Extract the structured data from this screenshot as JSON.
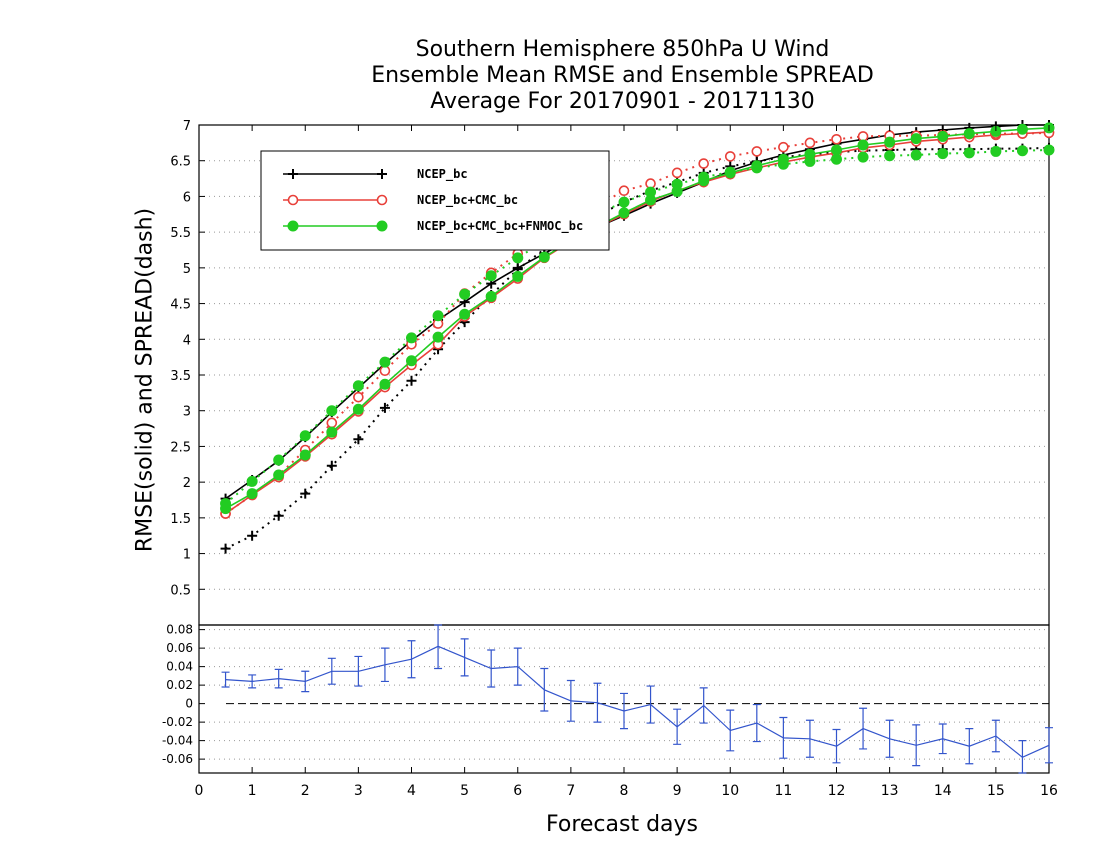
{
  "title_lines": [
    "Southern Hemisphere 850hPa U Wind",
    "Ensemble Mean RMSE and Ensemble SPREAD",
    "Average For 20170901 - 20171130"
  ],
  "chart_data": [
    {
      "type": "line",
      "title": "Southern Hemisphere 850hPa U Wind / Ensemble Mean RMSE and Ensemble SPREAD / Average For 20170901 - 20171130",
      "xlabel": "Forecast days",
      "ylabel": "RMSE(solid) and SPREAD(dash)",
      "xlim": [
        0,
        16
      ],
      "ylim": [
        0,
        7
      ],
      "yticks": [
        "0.5",
        "1",
        "1.5",
        "2",
        "2.5",
        "3",
        "3.5",
        "4",
        "4.5",
        "5",
        "5.5",
        "6",
        "6.5",
        "7"
      ],
      "x": [
        0.5,
        1,
        1.5,
        2,
        2.5,
        3,
        3.5,
        4,
        4.5,
        5,
        5.5,
        6,
        6.5,
        7,
        7.5,
        8,
        8.5,
        9,
        9.5,
        10,
        10.5,
        11,
        11.5,
        12,
        12.5,
        13,
        13.5,
        14,
        14.5,
        15,
        15.5,
        16
      ],
      "grid": "dotted horizontal",
      "legend": "top-left",
      "series": [
        {
          "name": "NCEP_bc",
          "kind": "rmse",
          "color": "#000000",
          "marker": "plus",
          "values": [
            1.77,
            2.03,
            2.3,
            2.63,
            2.98,
            3.32,
            3.66,
            3.98,
            4.27,
            4.52,
            4.78,
            5.0,
            5.2,
            5.4,
            5.57,
            5.73,
            5.9,
            6.05,
            6.2,
            6.36,
            6.48,
            6.58,
            6.66,
            6.74,
            6.8,
            6.86,
            6.9,
            6.93,
            6.96,
            6.98,
            7.0,
            7.0
          ]
        },
        {
          "name": "NCEP_bc",
          "kind": "spread",
          "color": "#000000",
          "marker": "plus",
          "values": [
            1.07,
            1.25,
            1.53,
            1.84,
            2.23,
            2.6,
            3.04,
            3.42,
            3.86,
            4.24,
            4.62,
            4.98,
            5.26,
            5.52,
            5.73,
            5.92,
            6.08,
            6.2,
            6.33,
            6.42,
            6.49,
            6.55,
            6.59,
            6.62,
            6.64,
            6.65,
            6.66,
            6.66,
            6.66,
            6.67,
            6.67,
            6.68
          ]
        },
        {
          "name": "NCEP_bc+CMC_bc",
          "kind": "rmse",
          "color": "#e8403a",
          "marker": "open-circle",
          "values": [
            1.56,
            1.82,
            2.07,
            2.36,
            2.67,
            2.99,
            3.33,
            3.64,
            3.93,
            4.32,
            4.58,
            4.85,
            5.14,
            5.37,
            5.57,
            5.75,
            5.93,
            6.08,
            6.2,
            6.31,
            6.4,
            6.48,
            6.55,
            6.61,
            6.68,
            6.72,
            6.77,
            6.8,
            6.83,
            6.86,
            6.88,
            6.9
          ]
        },
        {
          "name": "NCEP_bc+CMC_bc",
          "kind": "spread",
          "color": "#e8403a",
          "marker": "open-circle",
          "values": [
            1.56,
            1.82,
            2.1,
            2.45,
            2.83,
            3.19,
            3.56,
            3.93,
            4.22,
            4.64,
            4.93,
            5.2,
            5.45,
            5.68,
            5.87,
            6.08,
            6.18,
            6.33,
            6.46,
            6.56,
            6.63,
            6.69,
            6.75,
            6.8,
            6.84,
            6.85,
            6.85,
            6.86,
            6.87,
            6.88,
            6.88,
            6.89
          ]
        },
        {
          "name": "NCEP_bc+CMC_bc+FNMOC_bc",
          "kind": "rmse",
          "color": "#22cc22",
          "marker": "filled-circle",
          "values": [
            1.63,
            1.84,
            2.1,
            2.38,
            2.7,
            3.02,
            3.37,
            3.7,
            4.03,
            4.35,
            4.6,
            4.88,
            5.15,
            5.38,
            5.58,
            5.77,
            5.95,
            6.07,
            6.22,
            6.33,
            6.43,
            6.52,
            6.59,
            6.65,
            6.72,
            6.76,
            6.81,
            6.84,
            6.88,
            6.91,
            6.94,
            6.96
          ]
        },
        {
          "name": "NCEP_bc+CMC_bc+FNMOC_bc",
          "kind": "spread",
          "color": "#22cc22",
          "marker": "filled-circle",
          "values": [
            1.7,
            2.01,
            2.31,
            2.65,
            3.0,
            3.35,
            3.68,
            4.02,
            4.33,
            4.63,
            4.89,
            5.14,
            5.38,
            5.58,
            5.76,
            5.92,
            6.06,
            6.17,
            6.27,
            6.34,
            6.4,
            6.45,
            6.49,
            6.52,
            6.55,
            6.57,
            6.58,
            6.6,
            6.61,
            6.63,
            6.64,
            6.65
          ]
        }
      ]
    },
    {
      "type": "line",
      "xlabel": "Forecast days",
      "xlim": [
        0,
        16
      ],
      "xticks": [
        "0",
        "1",
        "2",
        "3",
        "4",
        "5",
        "6",
        "7",
        "8",
        "9",
        "10",
        "11",
        "12",
        "13",
        "14",
        "15",
        "16"
      ],
      "ylim": [
        -0.075,
        0.085
      ],
      "yticks": [
        "-0.06",
        "-0.04",
        "-0.02",
        "0",
        "0.02",
        "0.04",
        "0.06",
        "0.08"
      ],
      "zero_line": "dashed",
      "x": [
        0.5,
        1,
        1.5,
        2,
        2.5,
        3,
        3.5,
        4,
        4.5,
        5,
        5.5,
        6,
        6.5,
        7,
        7.5,
        8,
        8.5,
        9,
        9.5,
        10,
        10.5,
        11,
        11.5,
        12,
        12.5,
        13,
        13.5,
        14,
        14.5,
        15,
        15.5,
        16
      ],
      "series": [
        {
          "color": "#3355cc",
          "error_bars": true,
          "values": [
            0.026,
            0.024,
            0.027,
            0.024,
            0.035,
            0.035,
            0.042,
            0.048,
            0.062,
            0.05,
            0.038,
            0.04,
            0.015,
            0.003,
            0.001,
            -0.008,
            -0.001,
            -0.025,
            -0.002,
            -0.029,
            -0.021,
            -0.037,
            -0.038,
            -0.046,
            -0.027,
            -0.038,
            -0.045,
            -0.038,
            -0.046,
            -0.035,
            -0.058,
            -0.045
          ],
          "errors": [
            0.008,
            0.007,
            0.01,
            0.011,
            0.014,
            0.016,
            0.018,
            0.02,
            0.024,
            0.02,
            0.02,
            0.02,
            0.023,
            0.022,
            0.021,
            0.019,
            0.02,
            0.019,
            0.019,
            0.022,
            0.02,
            0.022,
            0.02,
            0.018,
            0.022,
            0.02,
            0.022,
            0.016,
            0.019,
            0.017,
            0.018,
            0.019
          ]
        }
      ]
    }
  ]
}
